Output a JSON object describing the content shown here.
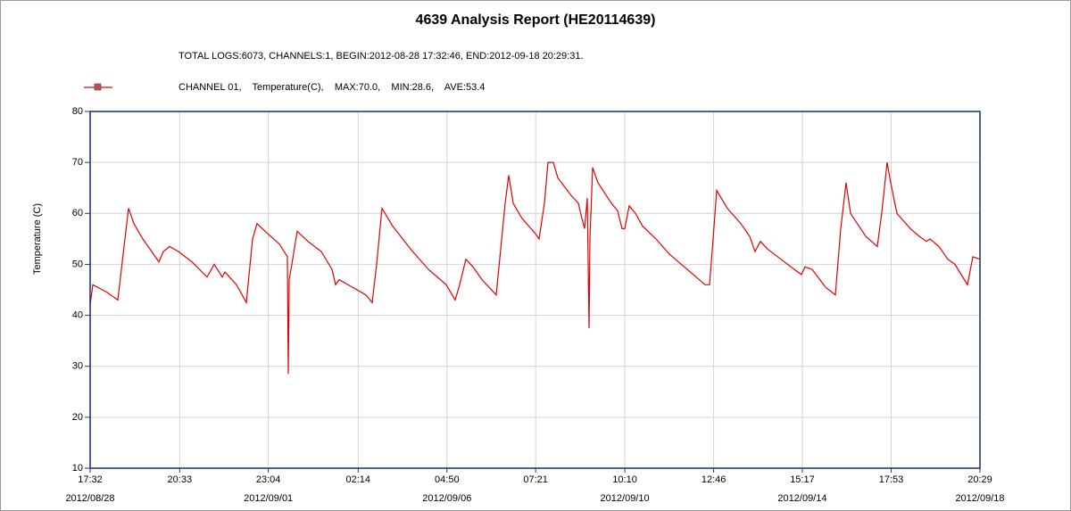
{
  "chart_data": {
    "type": "line",
    "title": "4639 Analysis Report (HE20114639)",
    "subtitle": "TOTAL LOGS:6073, CHANNELS:1, BEGIN:2012-08-28 17:32:46, END:2012-09-18 20:29:31.",
    "y_label": "Temperature (C)",
    "xlim": [
      "2012-08-28 17:32:46",
      "2012-09-18 20:29:31"
    ],
    "ylim": [
      10,
      80
    ],
    "yticks": [
      10,
      20,
      30,
      40,
      50,
      60,
      70,
      80
    ],
    "xticks": [
      {
        "value": "2012-08-28 17:32",
        "label": "17:32"
      },
      {
        "value": "2012-08-30 20:33",
        "label": "20:33"
      },
      {
        "value": "2012-09-01 23:04",
        "label": "23:04"
      },
      {
        "value": "2012-09-04 02:14",
        "label": "02:14"
      },
      {
        "value": "2012-09-06 04:50",
        "label": "04:50"
      },
      {
        "value": "2012-09-08 07:21",
        "label": "07:21"
      },
      {
        "value": "2012-09-10 10:10",
        "label": "10:10"
      },
      {
        "value": "2012-09-12 12:46",
        "label": "12:46"
      },
      {
        "value": "2012-09-14 15:17",
        "label": "15:17"
      },
      {
        "value": "2012-09-16 17:53",
        "label": "17:53"
      },
      {
        "value": "2012-09-18 20:29",
        "label": "20:29"
      }
    ],
    "xtick_dates": [
      {
        "value": "2012-08-28 17:32",
        "label": "2012/08/28"
      },
      {
        "value": "2012-09-01 23:04",
        "label": "2012/09/01"
      },
      {
        "value": "2012-09-06 04:50",
        "label": "2012/09/06"
      },
      {
        "value": "2012-09-10 10:10",
        "label": "2012/09/10"
      },
      {
        "value": "2012-09-14 15:17",
        "label": "2012/09/14"
      },
      {
        "value": "2012-09-18 20:29",
        "label": "2012/09/18"
      }
    ],
    "grid": true,
    "series": [
      {
        "name": "CHANNEL 01,    Temperature(C),    MAX:70.0,    MIN:28.6,    AVE:53.4",
        "color": "#e00000",
        "marker_color": "#c0504d",
        "x": [
          "2012-08-28 17:33",
          "2012-08-28 19:05",
          "2012-08-29 03:13",
          "2012-08-29 09:19",
          "2012-08-29 12:22",
          "2012-08-29 15:25",
          "2012-08-29 18:28",
          "2012-08-29 23:33",
          "2012-08-30 04:38",
          "2012-08-30 08:42",
          "2012-08-30 11:14",
          "2012-08-30 14:48",
          "2012-08-30 19:53",
          "2012-08-31 03:31",
          "2012-08-31 12:10",
          "2012-08-31 16:13",
          "2012-08-31 20:48",
          "2012-08-31 22:20",
          "2012-09-01 04:56",
          "2012-09-01 10:32",
          "2012-09-01 14:05",
          "2012-09-01 16:38",
          "2012-09-01 22:44",
          "2012-09-02 05:20",
          "2012-09-02 09:55",
          "2012-09-02 10:26",
          "2012-09-02 10:56",
          "2012-09-02 12:28",
          "2012-09-02 15:31",
          "2012-09-02 21:37",
          "2012-09-03 05:14",
          "2012-09-03 11:20",
          "2012-09-03 13:22",
          "2012-09-03 15:25",
          "2012-09-03 23:02",
          "2012-09-04 06:40",
          "2012-09-04 10:13",
          "2012-09-04 12:46",
          "2012-09-04 15:49",
          "2012-09-04 21:55",
          "2012-09-05 08:05",
          "2012-09-05 18:15",
          "2012-09-06 04:25",
          "2012-09-06 09:31",
          "2012-09-06 12:03",
          "2012-09-06 15:37",
          "2012-09-06 19:41",
          "2012-09-07 00:46",
          "2012-09-07 08:53",
          "2012-09-07 13:59",
          "2012-09-07 16:01",
          "2012-09-07 18:34",
          "2012-09-07 23:38",
          "2012-09-08 07:16",
          "2012-09-08 09:18",
          "2012-09-08 12:21",
          "2012-09-08 14:23",
          "2012-09-08 17:26",
          "2012-09-08 19:59",
          "2012-09-09 03:36",
          "2012-09-09 07:40",
          "2012-09-09 09:42",
          "2012-09-09 11:14",
          "2012-09-09 12:46",
          "2012-09-09 13:46",
          "2012-09-09 14:17",
          "2012-09-09 15:49",
          "2012-09-09 18:52",
          "2012-09-10 02:29",
          "2012-09-10 06:02",
          "2012-09-10 08:35",
          "2012-09-10 10:07",
          "2012-09-10 12:39",
          "2012-09-10 16:13",
          "2012-09-10 20:17",
          "2012-09-11 03:55",
          "2012-09-11 11:32",
          "2012-09-11 21:42",
          "2012-09-12 07:52",
          "2012-09-12 10:25",
          "2012-09-12 12:27",
          "2012-09-12 14:29",
          "2012-09-12 20:35",
          "2012-09-13 04:13",
          "2012-09-13 09:18",
          "2012-09-13 12:21",
          "2012-09-13 15:24",
          "2012-09-13 19:28",
          "2012-09-14 03:05",
          "2012-09-14 10:43",
          "2012-09-14 14:47",
          "2012-09-14 16:49",
          "2012-09-14 20:53",
          "2012-09-15 04:31",
          "2012-09-15 10:07",
          "2012-09-15 13:10",
          "2012-09-15 16:13",
          "2012-09-15 18:45",
          "2012-09-16 03:23",
          "2012-09-16 10:00",
          "2012-09-16 12:32",
          "2012-09-16 15:36",
          "2012-09-16 17:38",
          "2012-09-16 21:11",
          "2012-09-17 04:49",
          "2012-09-17 09:54",
          "2012-09-17 13:58",
          "2012-09-17 16:00",
          "2012-09-17 21:05",
          "2012-09-18 02:10",
          "2012-09-18 06:14",
          "2012-09-18 13:22",
          "2012-09-18 16:25",
          "2012-09-18 20:29"
        ],
        "values": [
          42,
          46,
          44.5,
          43,
          52,
          61,
          58,
          55,
          52.5,
          50.5,
          52.5,
          53.5,
          52.5,
          50.5,
          47.5,
          50,
          47.5,
          48.5,
          46,
          42.5,
          55,
          58,
          56,
          54,
          51.5,
          28.5,
          47,
          50,
          56.5,
          54.5,
          52.5,
          49,
          46,
          47,
          45.5,
          44,
          42.5,
          50,
          61,
          57.5,
          53,
          49,
          46,
          43,
          46,
          51,
          49.5,
          47,
          44,
          62,
          67.5,
          62,
          59,
          56,
          55,
          62,
          70,
          70,
          67,
          63.5,
          62,
          59,
          57,
          63,
          37.5,
          55,
          69,
          66,
          62,
          60.5,
          57,
          57,
          61.5,
          60,
          57.5,
          55,
          52,
          49,
          46,
          46,
          55,
          64.5,
          61,
          58,
          55.5,
          52.5,
          54.5,
          53,
          51,
          49,
          48,
          49.5,
          49,
          45.5,
          44,
          57,
          66,
          60,
          55.5,
          53.5,
          60,
          70,
          66,
          60,
          57,
          55.5,
          54.5,
          55,
          53.5,
          51,
          50,
          46,
          51.5,
          51
        ]
      }
    ]
  }
}
